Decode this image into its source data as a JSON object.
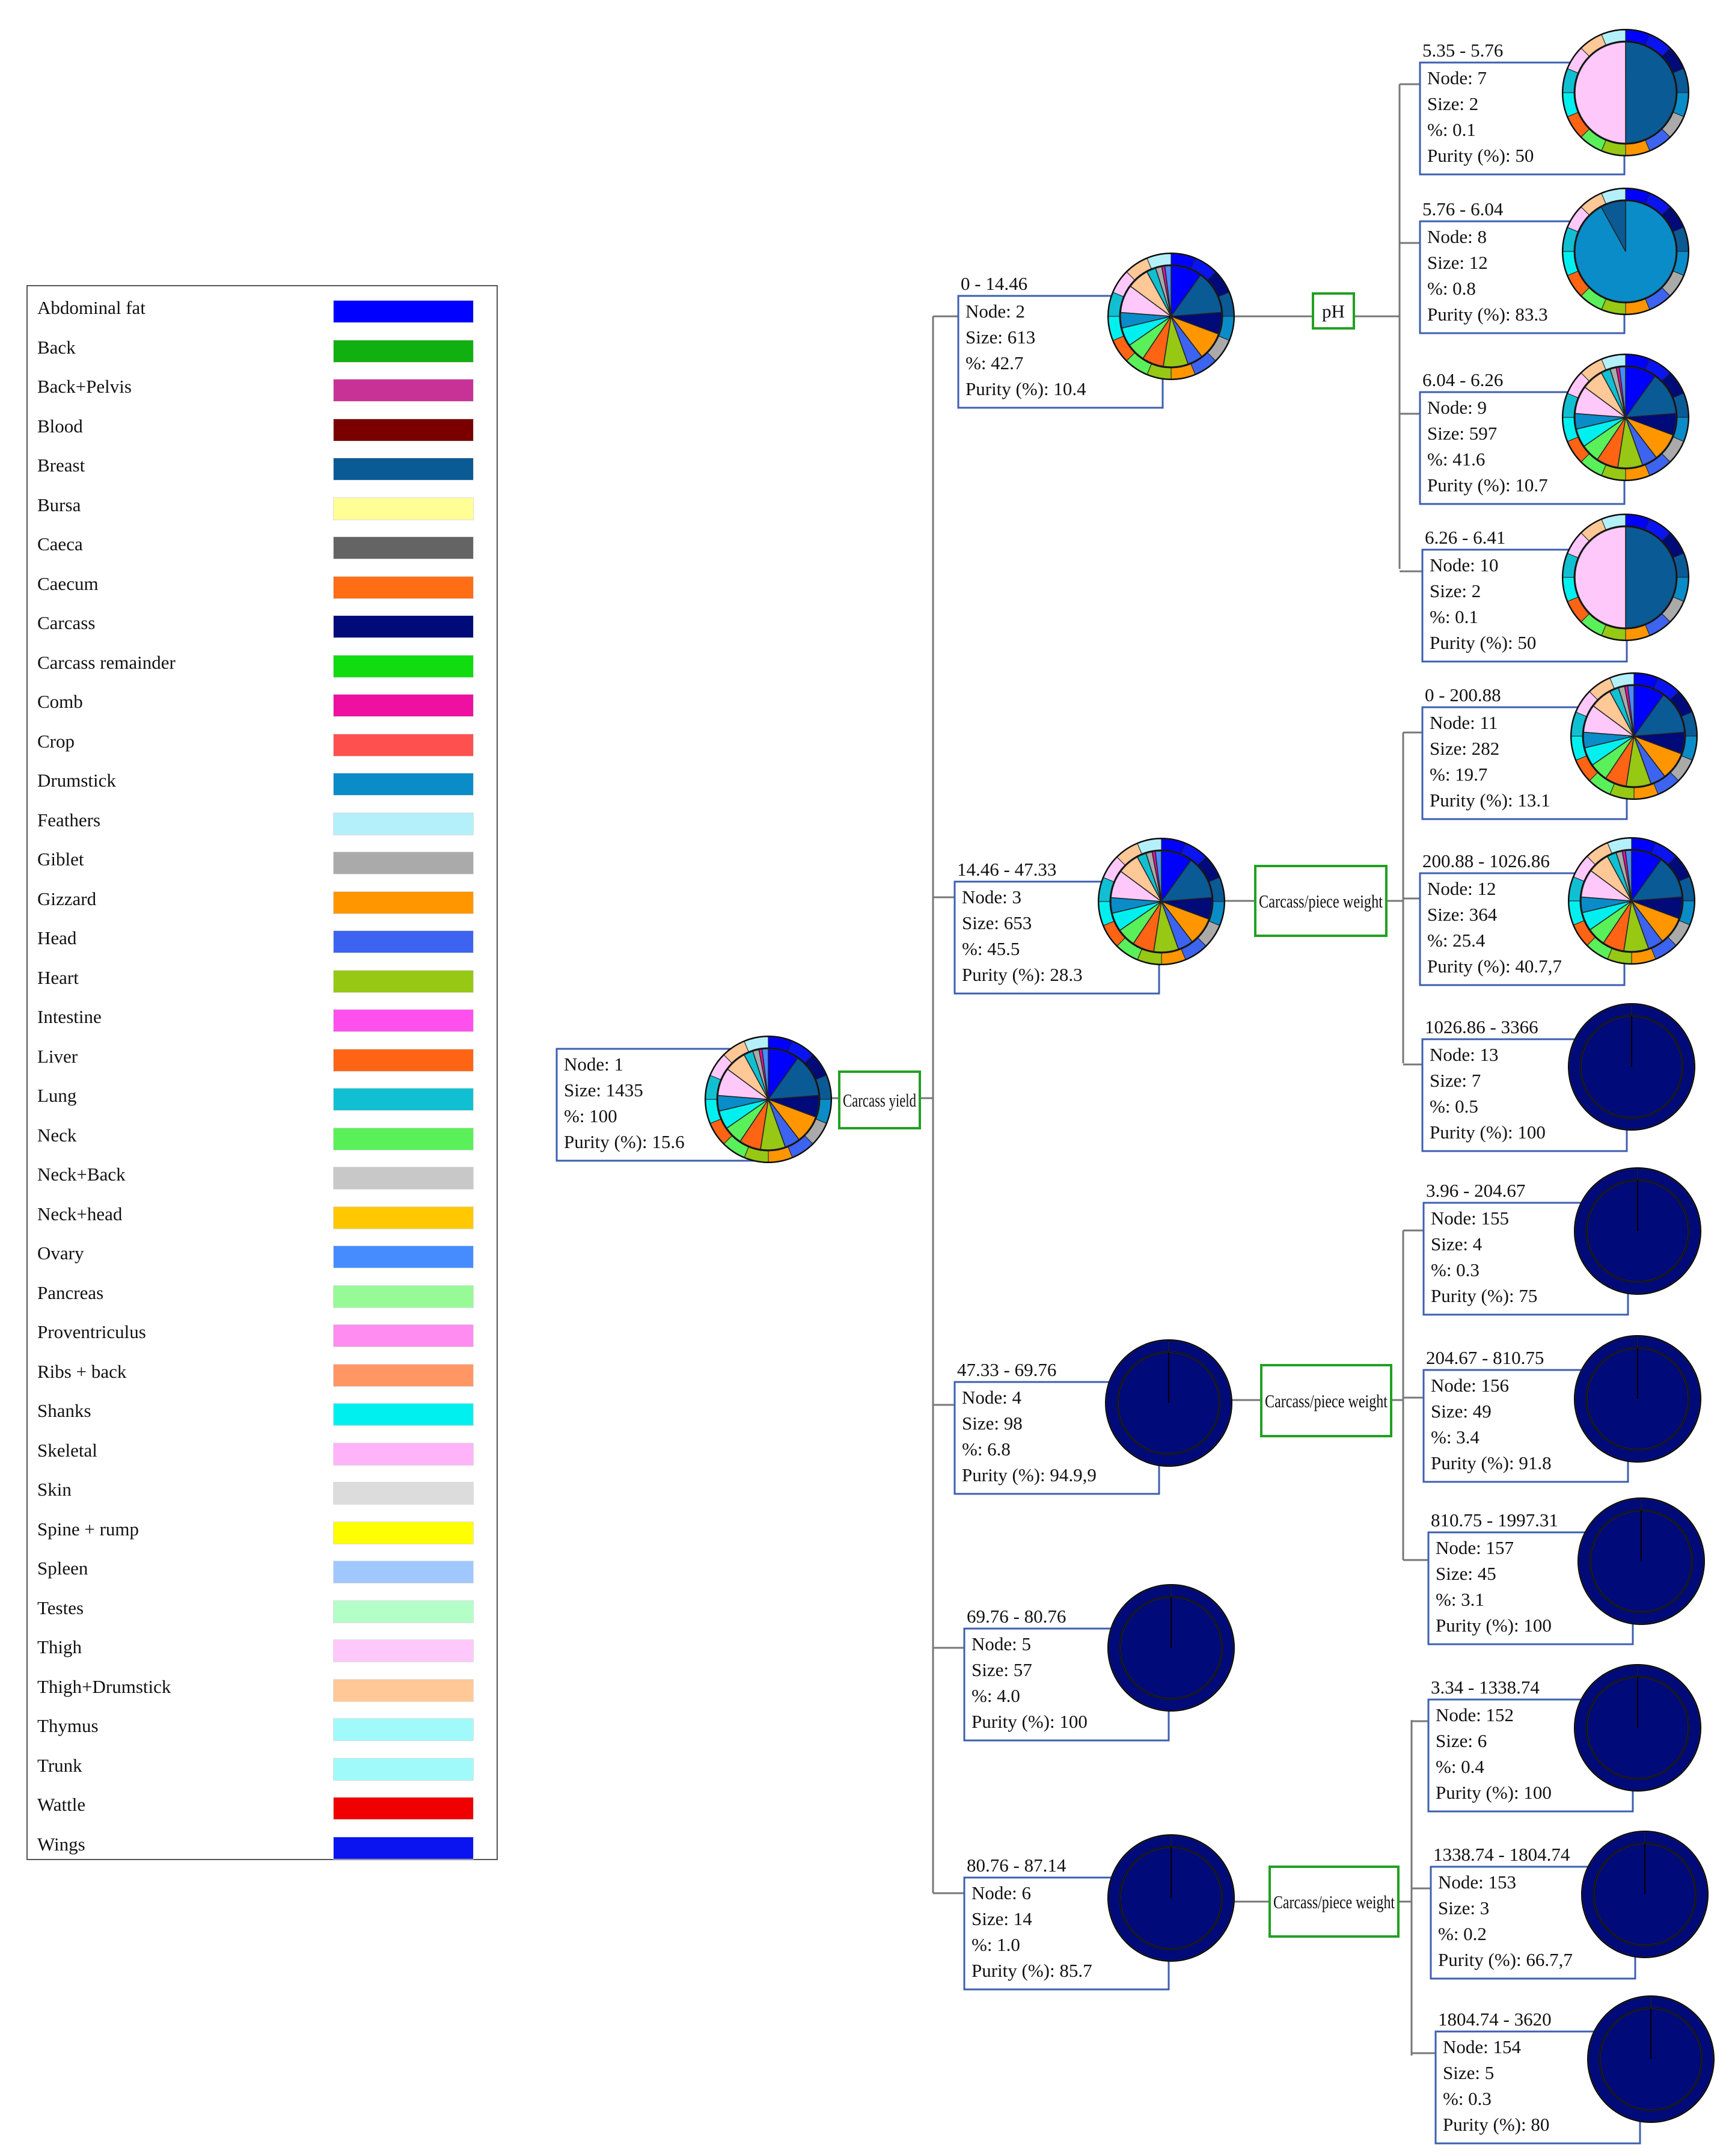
{
  "legend": [
    {
      "label": "Abdominal fat",
      "color": "#0000ff"
    },
    {
      "label": "Back",
      "color": "#10b010"
    },
    {
      "label": "Back+Pelvis",
      "color": "#c83296"
    },
    {
      "label": "Blood",
      "color": "#7a0000"
    },
    {
      "label": "Breast",
      "color": "#0a5a96"
    },
    {
      "label": "Bursa",
      "color": "#ffff96"
    },
    {
      "label": "Caeca",
      "color": "#646464"
    },
    {
      "label": "Caecum",
      "color": "#ff6e14"
    },
    {
      "label": "Carcass",
      "color": "#000a78"
    },
    {
      "label": "Carcass remainder",
      "color": "#10dc10"
    },
    {
      "label": "Comb",
      "color": "#ee10a0"
    },
    {
      "label": "Crop",
      "color": "#ff5050"
    },
    {
      "label": "Drumstick",
      "color": "#0a8cc8"
    },
    {
      "label": "Feathers",
      "color": "#b4f0fa"
    },
    {
      "label": "Giblet",
      "color": "#aaaaaa"
    },
    {
      "label": "Gizzard",
      "color": "#ff9600"
    },
    {
      "label": "Head",
      "color": "#3c64f0"
    },
    {
      "label": "Heart",
      "color": "#96c814"
    },
    {
      "label": "Intestine",
      "color": "#ff50ee"
    },
    {
      "label": "Liver",
      "color": "#ff6414"
    },
    {
      "label": "Lung",
      "color": "#10c0d2"
    },
    {
      "label": "Neck",
      "color": "#5af05a"
    },
    {
      "label": "Neck+Back",
      "color": "#c8c8c8"
    },
    {
      "label": "Neck+head",
      "color": "#ffc800"
    },
    {
      "label": "Ovary",
      "color": "#468cff"
    },
    {
      "label": "Pancreas",
      "color": "#96fa96"
    },
    {
      "label": "Proventriculus",
      "color": "#ff8cf0"
    },
    {
      "label": "Ribs + back",
      "color": "#ff9664"
    },
    {
      "label": "Shanks",
      "color": "#00f0f0"
    },
    {
      "label": "Skeletal",
      "color": "#ffb4fa"
    },
    {
      "label": "Skin",
      "color": "#dcdcdc"
    },
    {
      "label": "Spine + rump",
      "color": "#ffff00"
    },
    {
      "label": "Spleen",
      "color": "#a0c8ff"
    },
    {
      "label": "Testes",
      "color": "#b4ffc8"
    },
    {
      "label": "Thigh",
      "color": "#ffc8fa"
    },
    {
      "label": "Thigh+Drumstick",
      "color": "#ffc896"
    },
    {
      "label": "Thymus",
      "color": "#a0fafa"
    },
    {
      "label": "Trunk",
      "color": "#a0fafa"
    },
    {
      "label": "Wattle",
      "color": "#f00000"
    },
    {
      "label": "Wings",
      "color": "#0a14f0"
    }
  ],
  "splits": {
    "root": "Carcass yield",
    "n2": "pH",
    "n3": "Carcass/piece weight",
    "n4": "Carcass/piece weight",
    "n6": "Carcass/piece weight"
  },
  "nodes": [
    {
      "id": "n1",
      "range": "",
      "lines": [
        "Node: 1",
        "Size: 1435",
        "%: 100",
        "Purity (%): 15.6"
      ],
      "dominant": "mixed"
    },
    {
      "id": "n2",
      "range": "0 - 14.46",
      "lines": [
        "Node: 2",
        "Size: 613",
        "%: 42.7",
        "Purity (%): 10.4"
      ],
      "dominant": "mixed"
    },
    {
      "id": "n3",
      "range": "14.46 - 47.33",
      "lines": [
        "Node: 3",
        "Size: 653",
        "%: 45.5",
        "Purity (%): 28.3"
      ],
      "dominant": "mixed"
    },
    {
      "id": "n4",
      "range": "47.33 - 69.76",
      "lines": [
        "Node: 4",
        "Size: 98",
        "%: 6.8",
        "Purity (%): 94.9,9"
      ],
      "dominant": "Carcass"
    },
    {
      "id": "n5",
      "range": "69.76 - 80.76",
      "lines": [
        "Node: 5",
        "Size: 57",
        "%: 4.0",
        "Purity (%): 100"
      ],
      "dominant": "Carcass"
    },
    {
      "id": "n6",
      "range": "80.76 - 87.14",
      "lines": [
        "Node: 6",
        "Size: 14",
        "%: 1.0",
        "Purity (%): 85.7"
      ],
      "dominant": "Carcass"
    },
    {
      "id": "n7",
      "range": "5.35 - 5.76",
      "lines": [
        "Node: 7",
        "Size: 2",
        "%: 0.1",
        "Purity (%): 50"
      ],
      "dominant": "Thigh"
    },
    {
      "id": "n8",
      "range": "5.76 - 6.04",
      "lines": [
        "Node: 8",
        "Size: 12",
        "%: 0.8",
        "Purity (%): 83.3"
      ],
      "dominant": "Drumstick"
    },
    {
      "id": "n9",
      "range": "6.04 - 6.26",
      "lines": [
        "Node: 9",
        "Size: 597",
        "%: 41.6",
        "Purity (%): 10.7"
      ],
      "dominant": "mixed"
    },
    {
      "id": "n10",
      "range": "6.26 - 6.41",
      "lines": [
        "Node: 10",
        "Size: 2",
        "%: 0.1",
        "Purity (%): 50"
      ],
      "dominant": "Thigh"
    },
    {
      "id": "n11",
      "range": "0 - 200.88",
      "lines": [
        "Node: 11",
        "Size: 282",
        "%: 19.7",
        "Purity (%): 13.1"
      ],
      "dominant": "mixed"
    },
    {
      "id": "n12",
      "range": "200.88 - 1026.86",
      "lines": [
        "Node: 12",
        "Size: 364",
        "%: 25.4",
        "Purity (%): 40.7,7"
      ],
      "dominant": "mixed"
    },
    {
      "id": "n13",
      "range": "1026.86 - 3366",
      "lines": [
        "Node: 13",
        "Size: 7",
        "%: 0.5",
        "Purity (%): 100"
      ],
      "dominant": "Carcass"
    },
    {
      "id": "n155",
      "range": "3.96 - 204.67",
      "lines": [
        "Node: 155",
        "Size: 4",
        "%: 0.3",
        "Purity (%): 75"
      ],
      "dominant": "Carcass"
    },
    {
      "id": "n156",
      "range": "204.67 - 810.75",
      "lines": [
        "Node: 156",
        "Size: 49",
        "%: 3.4",
        "Purity (%): 91.8"
      ],
      "dominant": "Carcass"
    },
    {
      "id": "n157",
      "range": "810.75 - 1997.31",
      "lines": [
        "Node: 157",
        "Size: 45",
        "%: 3.1",
        "Purity (%): 100"
      ],
      "dominant": "Carcass"
    },
    {
      "id": "n152",
      "range": "3.34 - 1338.74",
      "lines": [
        "Node: 152",
        "Size: 6",
        "%: 0.4",
        "Purity (%): 100"
      ],
      "dominant": "Carcass"
    },
    {
      "id": "n153",
      "range": "1338.74 - 1804.74",
      "lines": [
        "Node: 153",
        "Size: 3",
        "%: 0.2",
        "Purity (%): 66.7,7"
      ],
      "dominant": "Carcass"
    },
    {
      "id": "n154",
      "range": "1804.74 - 3620",
      "lines": [
        "Node: 154",
        "Size: 5",
        "%: 0.3",
        "Purity (%): 80"
      ],
      "dominant": "Carcass"
    }
  ]
}
